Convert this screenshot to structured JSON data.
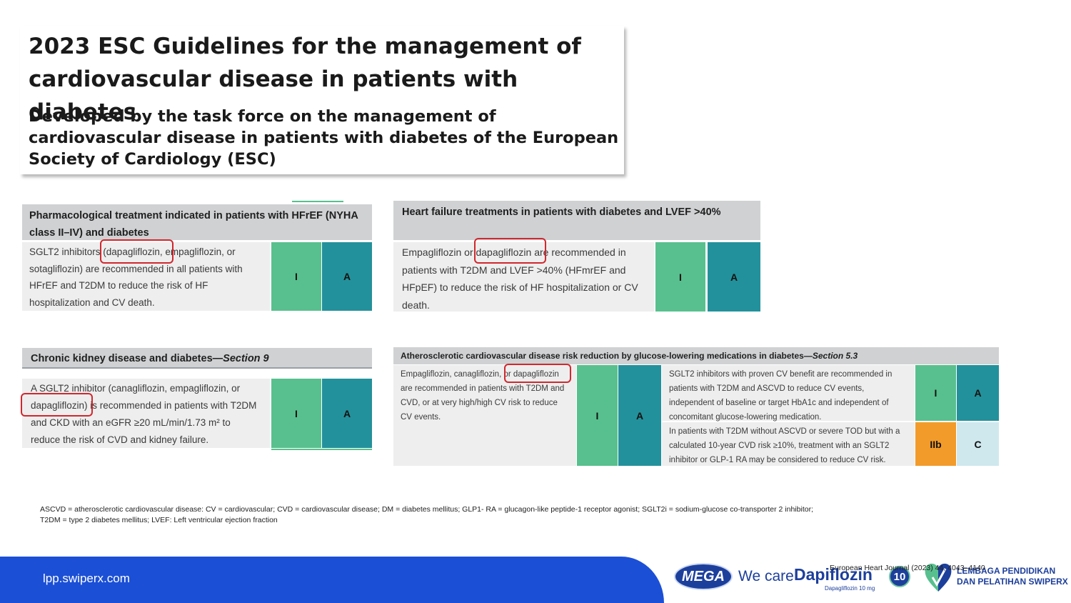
{
  "title": "2023 ESC Guidelines for the management of\ncardiovascular disease in patients with diabetes",
  "subtitle": "Developed by the task force on the management of cardiovascular disease in patients with diabetes of the European Society of Cardiology (ESC)",
  "tables": {
    "hfref": {
      "header": "Pharmacological treatment indicated in patients with HFrEF (NYHA class II–IV) and diabetes",
      "text": "SGLT2 inhibitors (dapagliflozin, empagliflozin, or sotagliflozin) are recommended in all patients with HFrEF and T2DM to reduce the risk of HF hospitalization and CV death.",
      "class": "I",
      "level": "A"
    },
    "lvef": {
      "header": "Heart failure treatments in patients with diabetes and LVEF >40%",
      "text": "Empagliflozin or dapagliflozin are recommended in patients with T2DM and LVEF >40% (HFmrEF and HFpEF) to reduce the risk of HF hospitalization or CV death.",
      "class": "I",
      "level": "A"
    },
    "ckd": {
      "header": "Chronic kidney disease and diabetes",
      "header_section": "—Section 9",
      "text": "A SGLT2 inhibitor (canagliflozin, empagliflozin, or dapagliflozin) is recommended in patients with T2DM and CKD with an eGFR ≥20 mL/min/1.73 m² to reduce the risk of CVD and kidney failure.",
      "class": "I",
      "level": "A"
    },
    "ascvd": {
      "header": "Atherosclerotic cardiovascular disease risk reduction by glucose-lowering medications in diabetes",
      "header_section": "—Section 5.3",
      "left_text": "Empagliflozin, canagliflozin, or dapagliflozin are recommended in patients with T2DM and CVD, or at very high/high CV risk to reduce CV events.",
      "left_class": "I",
      "left_level": "A",
      "right_rows": [
        {
          "text": "SGLT2 inhibitors with proven CV benefit are recommended in patients with T2DM and ASCVD to reduce CV events, independent of baseline or target HbA1c and independent of concomitant glucose-lowering medication.",
          "class": "I",
          "level": "A"
        },
        {
          "text": "In patients with T2DM without ASCVD or severe TOD but with a calculated 10-year CVD risk ≥10%, treatment with an SGLT2 inhibitor or GLP-1 RA may be considered to reduce CV risk.",
          "class": "IIb",
          "level": "C"
        }
      ]
    }
  },
  "footnote": "ASCVD = atherosclerotic cardiovascular disease: CV = cardiovascular; CVD = cardiovascular disease; DM = diabetes mellitus; GLP1- RA = glucagon-like peptide-1 receptor agonist; SGLT2i = sodium-glucose co-transporter 2 inhibitor; T2DM = type 2 diabetes mellitus; LVEF: Left ventricular ejection fraction",
  "footer": {
    "url": "lpp.swiperx.com",
    "journal_ref": "European Heart Journal (2023) 44, 4043–4140",
    "brand_mega": "MEGA",
    "we_care": "We care",
    "product": "Dapiflozin",
    "product_sub": "Dapagliflozin 10 mg",
    "product_badge": "10",
    "org_name": "LEMBAGA PENDIDIKAN\nDAN PELATIHAN SWIPERX"
  },
  "colors": {
    "class_I": "#58c08e",
    "level_A": "#23919b",
    "class_IIb": "#f29b2a",
    "level_C": "#cfe8ee",
    "footer_bar": "#1b4fd6",
    "highlight": "#d0282e"
  }
}
